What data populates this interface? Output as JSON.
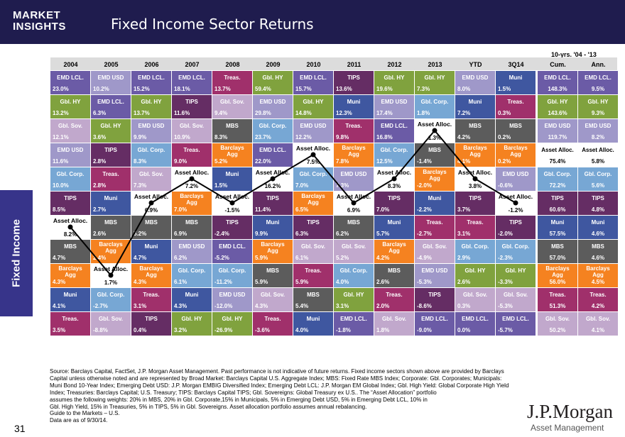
{
  "header": {
    "brand_line1": "MARKET",
    "brand_line2": "INSIGHTS",
    "title": "Fixed Income Sector Returns"
  },
  "side_label": "Fixed Income",
  "page_number": "31",
  "logo": {
    "name": "J.P.Morgan",
    "sub": "Asset Management"
  },
  "source_lines": [
    "Source: Barclays Capital, FactSet, J.P. Morgan Asset Management. Past performance is not indicative of future returns. Fixed income sectors shown above are provided by Barclays",
    "Capital unless otherwise noted and are represented by Broad Market: Barclays Capital U.S. Aggregate Index; MBS: Fixed Rate MBS Index; Corporate: Gbl. Corporates; Municipals:",
    "Muni Bond 10-Year Index; Emerging Debt USD: J.P. Morgan EMBIG Diversified Index; Emerging Debt LCL: J.P. Morgan EM Global Index; Gbl. High Yield: Global Corporate High Yield",
    "Index; Treasuries: Barclays Capital; U.S. Treasury; TIPS: Barclays Capital TIPS; Gbl. Sovereigns: Global Treasury ex U.S.. The “Asset Allocation” portfolio",
    "assumes the following weights: 20% in MBS, 20% in Gbl. Corporate,15% in Municipals, 5% in Emerging Debt USD, 5% in Emerging Debt LCL, 10% in",
    "Gbl. High Yield, 15% in Treasuries, 5% in TIPS, 5% in Gbl. Sovereigns. Asset allocation portfolio assumes annual rebalancing.",
    "Guide to the Markets – U.S.",
    "Data are as of 9/30/14."
  ],
  "colors": {
    "EMD LCL.": "#6b5ba6",
    "EMD USD": "#9f98c9",
    "Gbl. HY": "#80a23e",
    "Gbl. Sov.": "#c1a8cc",
    "Treas.": "#a0306b",
    "TIPS": "#652d64",
    "Gbl. Corp.": "#77a7d4",
    "Barclays Agg": "#f58220",
    "MBS": "#5c5c5c",
    "Muni": "#3f57a0",
    "Asset Alloc.": "#ffffff"
  },
  "chart_data": {
    "type": "table",
    "title": "Fixed Income Sector Returns",
    "top_header": "10-yrs. '04 - '13",
    "columns": [
      "2004",
      "2005",
      "2006",
      "2007",
      "2008",
      "2009",
      "2010",
      "2011",
      "2012",
      "2013",
      "YTD",
      "3Q14",
      "Cum.",
      "Ann."
    ],
    "rows": [
      [
        {
          "n": "EMD LCL.",
          "v": "23.0%"
        },
        {
          "n": "EMD USD",
          "v": "10.2%"
        },
        {
          "n": "EMD LCL.",
          "v": "15.2%"
        },
        {
          "n": "EMD LCL.",
          "v": "18.1%"
        },
        {
          "n": "Treas.",
          "v": "13.7%"
        },
        {
          "n": "Gbl. HY",
          "v": "59.4%"
        },
        {
          "n": "EMD LCL.",
          "v": "15.7%"
        },
        {
          "n": "TIPS",
          "v": "13.6%"
        },
        {
          "n": "Gbl. HY",
          "v": "19.6%"
        },
        {
          "n": "Gbl. HY",
          "v": "7.3%"
        },
        {
          "n": "EMD USD",
          "v": "8.0%"
        },
        {
          "n": "Muni",
          "v": "1.5%"
        },
        {
          "n": "EMD LCL.",
          "v": "148.3%"
        },
        {
          "n": "EMD LCL.",
          "v": "9.5%"
        }
      ],
      [
        {
          "n": "Gbl. HY",
          "v": "13.2%"
        },
        {
          "n": "EMD LCL.",
          "v": "6.3%"
        },
        {
          "n": "Gbl. HY",
          "v": "13.7%"
        },
        {
          "n": "TIPS",
          "v": "11.6%"
        },
        {
          "n": "Gbl. Sov.",
          "v": "9.4%"
        },
        {
          "n": "EMD USD",
          "v": "29.8%"
        },
        {
          "n": "Gbl. HY",
          "v": "14.8%"
        },
        {
          "n": "Muni",
          "v": "12.3%"
        },
        {
          "n": "EMD USD",
          "v": "17.4%"
        },
        {
          "n": "Gbl. Corp.",
          "v": "1.8%"
        },
        {
          "n": "Muni",
          "v": "7.2%"
        },
        {
          "n": "Treas.",
          "v": "0.3%"
        },
        {
          "n": "Gbl. HY",
          "v": "143.6%"
        },
        {
          "n": "Gbl. HY",
          "v": "9.3%"
        }
      ],
      [
        {
          "n": "Gbl. Sov.",
          "v": "12.1%"
        },
        {
          "n": "Gbl. HY",
          "v": "3.6%"
        },
        {
          "n": "EMD USD",
          "v": "9.9%"
        },
        {
          "n": "Gbl. Sov.",
          "v": "10.9%"
        },
        {
          "n": "MBS",
          "v": "8.3%"
        },
        {
          "n": "Gbl. Corp.",
          "v": "23.7%"
        },
        {
          "n": "EMD USD",
          "v": "12.2%"
        },
        {
          "n": "Treas.",
          "v": "9.8%"
        },
        {
          "n": "EMD LCL.",
          "v": "16.8%"
        },
        {
          "n": "Asset Alloc.",
          "v": "1.3%"
        },
        {
          "n": "MBS",
          "v": "4.2%"
        },
        {
          "n": "MBS",
          "v": "0.2%"
        },
        {
          "n": "EMD USD",
          "v": "119.7%"
        },
        {
          "n": "EMD USD",
          "v": "8.2%"
        }
      ],
      [
        {
          "n": "EMD USD",
          "v": "11.6%"
        },
        {
          "n": "TIPS",
          "v": "2.8%"
        },
        {
          "n": "Gbl. Corp.",
          "v": "8.3%"
        },
        {
          "n": "Treas.",
          "v": "9.0%"
        },
        {
          "n": "Barclays Agg",
          "v": "5.2%"
        },
        {
          "n": "EMD LCL.",
          "v": "22.0%"
        },
        {
          "n": "Asset Alloc.",
          "v": "7.5%"
        },
        {
          "n": "Barclays Agg",
          "v": "7.8%"
        },
        {
          "n": "Gbl. Corp.",
          "v": "12.5%"
        },
        {
          "n": "MBS",
          "v": "-1.4%"
        },
        {
          "n": "Barclays Agg",
          "v": "4.1%"
        },
        {
          "n": "Barclays Agg",
          "v": "0.2%"
        },
        {
          "n": "Asset Alloc.",
          "v": "75.4%"
        },
        {
          "n": "Asset Alloc.",
          "v": "5.8%"
        }
      ],
      [
        {
          "n": "Gbl. Corp.",
          "v": "10.0%"
        },
        {
          "n": "Treas.",
          "v": "2.8%"
        },
        {
          "n": "Gbl. Sov.",
          "v": "7.3%"
        },
        {
          "n": "Asset Alloc.",
          "v": "7.2%"
        },
        {
          "n": "Muni",
          "v": "1.5%"
        },
        {
          "n": "Asset Alloc.",
          "v": "16.2%"
        },
        {
          "n": "Gbl. Corp.",
          "v": "7.0%"
        },
        {
          "n": "EMD USD",
          "v": "7.3%"
        },
        {
          "n": "Asset Alloc.",
          "v": "8.3%"
        },
        {
          "n": "Barclays Agg",
          "v": "-2.0%"
        },
        {
          "n": "Asset Alloc.",
          "v": "3.8%"
        },
        {
          "n": "EMD USD",
          "v": "-0.6%"
        },
        {
          "n": "Gbl. Corp.",
          "v": "72.2%"
        },
        {
          "n": "Gbl. Corp.",
          "v": "5.6%"
        }
      ],
      [
        {
          "n": "TIPS",
          "v": "8.5%"
        },
        {
          "n": "Muni",
          "v": "2.7%"
        },
        {
          "n": "Asset Alloc.",
          "v": "6.9%"
        },
        {
          "n": "Barclays Agg",
          "v": "7.0%"
        },
        {
          "n": "Asset Alloc.",
          "v": "-1.5%"
        },
        {
          "n": "TIPS",
          "v": "11.4%"
        },
        {
          "n": "Barclays Agg",
          "v": "6.5%"
        },
        {
          "n": "Asset Alloc.",
          "v": "6.9%"
        },
        {
          "n": "TIPS",
          "v": "7.0%"
        },
        {
          "n": "Muni",
          "v": "-2.2%"
        },
        {
          "n": "TIPS",
          "v": "3.7%"
        },
        {
          "n": "Asset Alloc.",
          "v": "-1.2%"
        },
        {
          "n": "TIPS",
          "v": "60.6%"
        },
        {
          "n": "TIPS",
          "v": "4.8%"
        }
      ],
      [
        {
          "n": "Asset Alloc.",
          "v": "8.2%"
        },
        {
          "n": "MBS",
          "v": "2.6%"
        },
        {
          "n": "MBS",
          "v": "5.2%"
        },
        {
          "n": "MBS",
          "v": "6.9%"
        },
        {
          "n": "TIPS",
          "v": "-2.4%"
        },
        {
          "n": "Muni",
          "v": "9.9%"
        },
        {
          "n": "TIPS",
          "v": "6.3%"
        },
        {
          "n": "MBS",
          "v": "6.2%"
        },
        {
          "n": "Muni",
          "v": "5.7%"
        },
        {
          "n": "Treas.",
          "v": "-2.7%"
        },
        {
          "n": "Treas.",
          "v": "3.1%"
        },
        {
          "n": "TIPS",
          "v": "-2.0%"
        },
        {
          "n": "Muni",
          "v": "57.5%"
        },
        {
          "n": "Muni",
          "v": "4.6%"
        }
      ],
      [
        {
          "n": "MBS",
          "v": "4.7%"
        },
        {
          "n": "Barclays Agg",
          "v": "2.4%"
        },
        {
          "n": "Muni",
          "v": "4.7%"
        },
        {
          "n": "EMD USD",
          "v": "6.2%"
        },
        {
          "n": "EMD LCL.",
          "v": "-5.2%"
        },
        {
          "n": "Barclays Agg",
          "v": "5.9%"
        },
        {
          "n": "Gbl. Sov.",
          "v": "6.1%"
        },
        {
          "n": "Gbl. Sov.",
          "v": "5.2%"
        },
        {
          "n": "Barclays Agg",
          "v": "4.2%"
        },
        {
          "n": "Gbl. Sov.",
          "v": "-4.9%"
        },
        {
          "n": "Gbl. Corp.",
          "v": "2.9%"
        },
        {
          "n": "Gbl. Corp.",
          "v": "-2.3%"
        },
        {
          "n": "MBS",
          "v": "57.0%"
        },
        {
          "n": "MBS",
          "v": "4.6%"
        }
      ],
      [
        {
          "n": "Barclays Agg",
          "v": "4.3%"
        },
        {
          "n": "Asset Alloc.",
          "v": "1.7%"
        },
        {
          "n": "Barclays Agg",
          "v": "4.3%"
        },
        {
          "n": "Gbl. Corp.",
          "v": "6.1%"
        },
        {
          "n": "Gbl. Corp.",
          "v": "-11.2%"
        },
        {
          "n": "MBS",
          "v": "5.9%"
        },
        {
          "n": "Treas.",
          "v": "5.9%"
        },
        {
          "n": "Gbl. Corp.",
          "v": "4.0%"
        },
        {
          "n": "MBS",
          "v": "2.6%"
        },
        {
          "n": "EMD USD",
          "v": "-5.3%"
        },
        {
          "n": "Gbl. HY",
          "v": "2.6%"
        },
        {
          "n": "Gbl. HY",
          "v": "-3.3%"
        },
        {
          "n": "Barclays Agg",
          "v": "56.0%"
        },
        {
          "n": "Barclays Agg",
          "v": "4.5%"
        }
      ],
      [
        {
          "n": "Muni",
          "v": "4.1%"
        },
        {
          "n": "Gbl. Corp.",
          "v": "-2.7%"
        },
        {
          "n": "Treas.",
          "v": "3.1%"
        },
        {
          "n": "Muni",
          "v": "4.3%"
        },
        {
          "n": "EMD USD",
          "v": "-12.0%"
        },
        {
          "n": "Gbl. Sov.",
          "v": "4.3%"
        },
        {
          "n": "MBS",
          "v": "5.4%"
        },
        {
          "n": "Gbl. HY",
          "v": "3.1%"
        },
        {
          "n": "Treas.",
          "v": "2.0%"
        },
        {
          "n": "TIPS",
          "v": "-8.6%"
        },
        {
          "n": "Gbl. Sov.",
          "v": "0.3%"
        },
        {
          "n": "Gbl. Sov.",
          "v": "-5.3%"
        },
        {
          "n": "Treas.",
          "v": "51.3%"
        },
        {
          "n": "Treas.",
          "v": "4.2%"
        }
      ],
      [
        {
          "n": "Treas.",
          "v": "3.5%"
        },
        {
          "n": "Gbl. Sov.",
          "v": "-8.8%"
        },
        {
          "n": "TIPS",
          "v": "0.4%"
        },
        {
          "n": "Gbl. HY",
          "v": "3.2%"
        },
        {
          "n": "Gbl. HY",
          "v": "-26.9%"
        },
        {
          "n": "Treas.",
          "v": "-3.6%"
        },
        {
          "n": "Muni",
          "v": "4.0%"
        },
        {
          "n": "EMD LCL.",
          "v": "-1.8%"
        },
        {
          "n": "Gbl. Sov.",
          "v": "1.8%"
        },
        {
          "n": "EMD LCL.",
          "v": "-9.0%"
        },
        {
          "n": "EMD LCL.",
          "v": "0.0%"
        },
        {
          "n": "EMD LCL.",
          "v": "-5.7%"
        },
        {
          "n": "Gbl. Sov.",
          "v": "50.2%"
        },
        {
          "n": "Gbl. Sov.",
          "v": "4.1%"
        }
      ]
    ],
    "highlight_series": "Asset Alloc."
  }
}
